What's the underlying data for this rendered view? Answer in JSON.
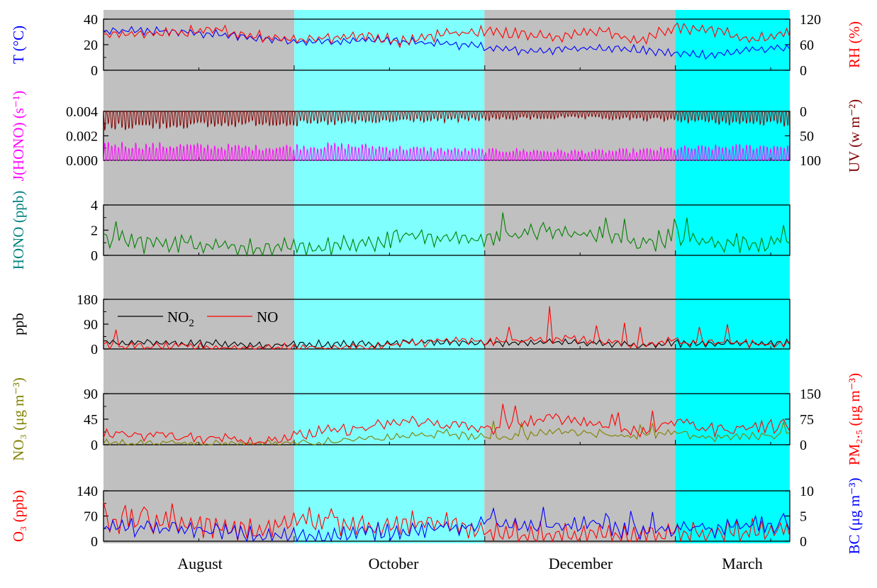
{
  "months": [
    "August",
    "October",
    "December",
    "March"
  ],
  "season_bands": [
    {
      "start": 0,
      "end": 0.278,
      "color": "#c0c0c0"
    },
    {
      "start": 0.278,
      "end": 0.555,
      "color": "#80ffff"
    },
    {
      "start": 0.555,
      "end": 0.833,
      "color": "#c0c0c0"
    },
    {
      "start": 0.833,
      "end": 1.0,
      "color": "#00ffff"
    }
  ],
  "chart_data": [
    {
      "type": "line",
      "panel": "meteorology",
      "y_left": {
        "label": "T (°C)",
        "ticks": [
          "0",
          "20",
          "40"
        ],
        "ylim": [
          0,
          40
        ],
        "color": "#0000ff"
      },
      "y_right": {
        "label": "RH (%)",
        "ticks": [
          "0",
          "60",
          "120"
        ],
        "ylim": [
          0,
          120
        ],
        "color": "#ff0000"
      },
      "series": [
        {
          "name": "",
          "axis": "left",
          "color": "#0000ff",
          "levels": [
            30,
            31,
            30,
            28,
            25,
            23,
            22,
            24,
            22,
            21,
            18,
            15,
            16,
            18,
            16,
            13,
            12,
            16,
            18
          ],
          "amp": 2.5,
          "noise": 1.5
        },
        {
          "name": "",
          "axis": "right",
          "color": "#ff0000",
          "levels": [
            80,
            85,
            88,
            95,
            80,
            72,
            75,
            80,
            65,
            88,
            90,
            85,
            80,
            95,
            70,
            100,
            95,
            70,
            85
          ],
          "amp": 10,
          "noise": 6
        }
      ]
    },
    {
      "type": "line",
      "panel": "photolysis",
      "y_left": {
        "label": "J(HONO) (s⁻¹)",
        "ticks": [
          "0.000",
          "0.002",
          "0.004"
        ],
        "ylim": [
          0,
          0.004
        ],
        "color": "#ff00ff"
      },
      "y_right": {
        "label": "UV (w m⁻²)",
        "ticks": [
          "0",
          "50",
          "100"
        ],
        "ylim": [
          0,
          100
        ],
        "inverted": true,
        "color": "#800000"
      },
      "series": [
        {
          "name": "",
          "axis": "left",
          "color": "#ff00ff",
          "diurnal_peak": [
            0.0017,
            0.0015,
            0.0015,
            0.0014,
            0.0013,
            0.0014,
            0.0015,
            0.0014,
            0.0012,
            0.0011,
            0.001,
            0.001,
            0.0009,
            0.0009,
            0.001,
            0.0012,
            0.0013,
            0.0014,
            0.0015
          ]
        },
        {
          "name": "",
          "axis": "right",
          "color": "#800000",
          "diurnal_peak": [
            40,
            38,
            36,
            35,
            30,
            32,
            30,
            28,
            22,
            24,
            20,
            18,
            16,
            18,
            20,
            22,
            28,
            30,
            32
          ]
        }
      ]
    },
    {
      "type": "line",
      "panel": "hono",
      "y_left": {
        "label": "HONO (ppb)",
        "ticks": [
          "0",
          "2",
          "4"
        ],
        "ylim": [
          0,
          4
        ],
        "color": "#008080"
      },
      "series": [
        {
          "name": "",
          "axis": "left",
          "color": "#008000",
          "levels": [
            1.4,
            1.0,
            1.0,
            0.9,
            0.5,
            0.5,
            0.7,
            0.9,
            1.6,
            1.4,
            1.2,
            1.8,
            1.8,
            1.6,
            1.0,
            1.4,
            1.0,
            1.0,
            1.0
          ],
          "amp": 0.5,
          "noise": 0.4,
          "spikes": [
            [
              0.02,
              2.7
            ],
            [
              0.58,
              3.4
            ],
            [
              0.64,
              2.6
            ],
            [
              0.76,
              2.9
            ],
            [
              0.73,
              3.0
            ],
            [
              0.83,
              2.9
            ],
            [
              0.85,
              3.0
            ],
            [
              0.99,
              2.4
            ]
          ]
        }
      ]
    },
    {
      "type": "line",
      "panel": "nox",
      "y_left": {
        "label": "ppb",
        "ticks": [
          "0",
          "90",
          "180"
        ],
        "ylim": [
          0,
          180
        ],
        "color": "#000000"
      },
      "legend": [
        {
          "name": "NO",
          "sub": "2",
          "color": "#000000"
        },
        {
          "name": "NO",
          "sub": "",
          "color": "#ff0000"
        }
      ],
      "series": [
        {
          "name": "NO2",
          "axis": "left",
          "color": "#000000",
          "levels": [
            25,
            22,
            20,
            20,
            12,
            15,
            18,
            18,
            25,
            25,
            22,
            22,
            25,
            20,
            15,
            22,
            20,
            22,
            22
          ],
          "amp": 10,
          "noise": 6
        },
        {
          "name": "NO",
          "axis": "left",
          "color": "#ff0000",
          "levels": [
            10,
            8,
            8,
            6,
            3,
            3,
            5,
            6,
            20,
            30,
            25,
            30,
            40,
            25,
            10,
            30,
            25,
            20,
            18
          ],
          "amp": 8,
          "noise": 10,
          "spikes": [
            [
              0.02,
              70
            ],
            [
              0.59,
              80
            ],
            [
              0.65,
              155
            ],
            [
              0.72,
              85
            ],
            [
              0.76,
              95
            ],
            [
              0.78,
              90
            ],
            [
              0.78,
              80
            ],
            [
              0.87,
              80
            ],
            [
              0.91,
              90
            ]
          ]
        }
      ]
    },
    {
      "type": "line",
      "panel": "aerosol",
      "y_left": {
        "label": "NO₃ (μg m⁻³)",
        "ticks": [
          "0",
          "45",
          "90"
        ],
        "ylim": [
          0,
          90
        ],
        "color": "#808000"
      },
      "y_right": {
        "label": "PM₂.₅ (μg m⁻³)",
        "ticks": [
          "0",
          "75",
          "150"
        ],
        "ylim": [
          0,
          150
        ],
        "color": "#ff0000"
      },
      "series": [
        {
          "name": "",
          "axis": "left",
          "color": "#808000",
          "levels": [
            3,
            3,
            3,
            2,
            2,
            3,
            6,
            10,
            15,
            20,
            12,
            15,
            25,
            20,
            15,
            20,
            12,
            15,
            18
          ],
          "amp": 3,
          "noise": 5,
          "spikes": [
            [
              0.57,
              42
            ],
            [
              0.61,
              38
            ],
            [
              0.78,
              35
            ],
            [
              0.8,
              38
            ],
            [
              0.99,
              40
            ]
          ]
        },
        {
          "name": "",
          "axis": "right",
          "color": "#ff0000",
          "levels": [
            30,
            30,
            25,
            20,
            12,
            25,
            40,
            50,
            70,
            60,
            45,
            65,
            80,
            60,
            35,
            65,
            45,
            50,
            55
          ],
          "amp": 8,
          "noise": 14,
          "spikes": [
            [
              0.58,
              120
            ],
            [
              0.6,
              115
            ],
            [
              0.74,
              90
            ],
            [
              0.75,
              95
            ],
            [
              0.8,
              100
            ],
            [
              0.84,
              75
            ],
            [
              0.95,
              65
            ],
            [
              0.99,
              75
            ]
          ]
        }
      ]
    },
    {
      "type": "line",
      "panel": "ozone-bc",
      "y_left": {
        "label": "O₃ (ppb)",
        "ticks": [
          "0",
          "70",
          "140"
        ],
        "ylim": [
          0,
          140
        ],
        "color": "#ff0000"
      },
      "y_right": {
        "label": "BC (μg m⁻³)",
        "ticks": [
          "0",
          "5",
          "10"
        ],
        "ylim": [
          0,
          10
        ],
        "color": "#0000ff"
      },
      "series": [
        {
          "name": "",
          "axis": "left",
          "color": "#ff0000",
          "levels": [
            50,
            55,
            45,
            40,
            30,
            65,
            55,
            35,
            50,
            45,
            30,
            20,
            15,
            15,
            10,
            25,
            20,
            30,
            30
          ],
          "amp": 25,
          "noise": 15,
          "spikes": [
            [
              0.0,
              110
            ],
            [
              0.03,
              100
            ],
            [
              0.06,
              95
            ],
            [
              0.1,
              105
            ],
            [
              0.3,
              95
            ],
            [
              0.33,
              90
            ]
          ]
        },
        {
          "name": "",
          "axis": "right",
          "color": "#0000ff",
          "levels": [
            3,
            2.5,
            2.5,
            2,
            1,
            1,
            1.2,
            1.8,
            2.2,
            2.5,
            3.5,
            2.5,
            3,
            3.5,
            1.5,
            2.5,
            2.5,
            3,
            3
          ],
          "amp": 1,
          "noise": 1.0,
          "spikes": [
            [
              0.57,
              6.5
            ],
            [
              0.64,
              6.8
            ],
            [
              0.73,
              5.5
            ],
            [
              0.77,
              6.0
            ],
            [
              0.8,
              5.8
            ],
            [
              0.95,
              5.0
            ],
            [
              0.99,
              5.5
            ]
          ]
        }
      ]
    }
  ]
}
